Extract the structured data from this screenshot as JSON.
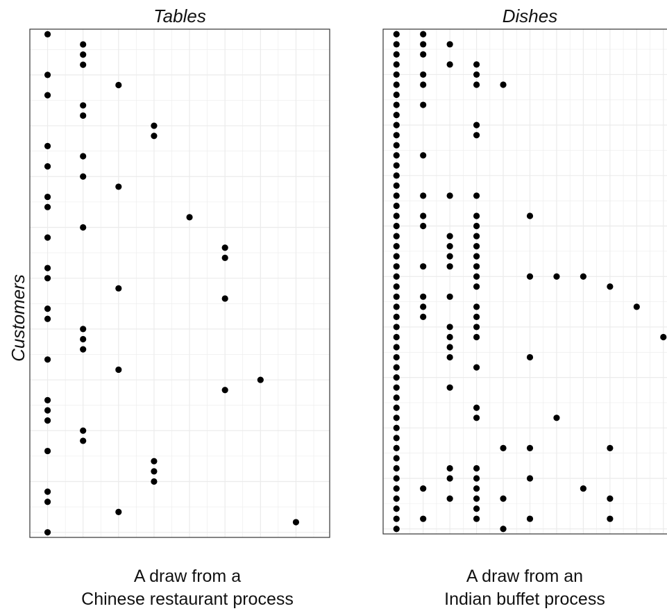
{
  "y_axis_title": "Customers",
  "chart_data": [
    {
      "type": "scatter",
      "title": "Tables",
      "xlabel": "",
      "ylabel": "Customers",
      "caption": [
        "A draw from a",
        "Chinese restaurant process"
      ],
      "xlim": [
        0.5,
        8.95
      ],
      "ylim": [
        0.5,
        50.5
      ],
      "grid": true,
      "y_reversed": true,
      "x": [
        1,
        2,
        2,
        2,
        1,
        3,
        1,
        2,
        2,
        4,
        4,
        1,
        2,
        1,
        2,
        3,
        1,
        1,
        5,
        2,
        1,
        6,
        6,
        1,
        1,
        3,
        6,
        1,
        1,
        2,
        2,
        2,
        1,
        3,
        7,
        6,
        1,
        1,
        1,
        2,
        2,
        1,
        4,
        4,
        4,
        1,
        1,
        3,
        8,
        1
      ],
      "y": [
        1,
        2,
        3,
        4,
        5,
        6,
        7,
        8,
        9,
        10,
        11,
        12,
        13,
        14,
        15,
        16,
        17,
        18,
        19,
        20,
        21,
        22,
        23,
        24,
        25,
        26,
        27,
        28,
        29,
        30,
        31,
        32,
        33,
        34,
        35,
        36,
        37,
        38,
        39,
        40,
        41,
        42,
        43,
        44,
        45,
        46,
        47,
        48,
        49,
        50
      ]
    },
    {
      "type": "scatter",
      "title": "Dishes",
      "xlabel": "",
      "ylabel": "",
      "caption": [
        "A draw from an",
        "Indian buffet process"
      ],
      "xlim": [
        0.5,
        11.5
      ],
      "ylim": [
        0.5,
        50.5
      ],
      "grid": true,
      "y_reversed": true,
      "x": [
        1,
        2,
        1,
        2,
        3,
        1,
        2,
        1,
        3,
        4,
        1,
        2,
        4,
        1,
        2,
        4,
        5,
        1,
        1,
        2,
        1,
        1,
        4,
        1,
        4,
        1,
        1,
        2,
        1,
        1,
        1,
        1,
        2,
        3,
        4,
        1,
        1,
        2,
        4,
        6,
        1,
        2,
        4,
        1,
        3,
        4,
        1,
        3,
        4,
        1,
        3,
        4,
        1,
        2,
        3,
        4,
        1,
        4,
        6,
        7,
        8,
        1,
        4,
        9,
        1,
        2,
        3,
        1,
        2,
        4,
        10,
        1,
        2,
        4,
        1,
        3,
        4,
        1,
        3,
        4,
        11,
        1,
        3,
        1,
        3,
        6,
        1,
        4,
        1,
        1,
        3,
        1,
        1,
        4,
        1,
        4,
        7,
        1,
        1,
        1,
        5,
        6,
        9,
        1,
        1,
        3,
        4,
        1,
        3,
        4,
        6,
        1,
        2,
        4,
        8,
        1,
        3,
        4,
        5,
        9,
        1,
        4,
        1,
        2,
        4,
        6,
        9,
        1,
        5
      ],
      "y": [
        1,
        1,
        2,
        2,
        2,
        3,
        3,
        4,
        4,
        4,
        5,
        5,
        5,
        6,
        6,
        6,
        6,
        7,
        8,
        8,
        9,
        10,
        10,
        11,
        11,
        12,
        13,
        13,
        14,
        15,
        16,
        17,
        17,
        17,
        17,
        18,
        19,
        19,
        19,
        19,
        20,
        20,
        20,
        21,
        21,
        21,
        22,
        22,
        22,
        23,
        23,
        23,
        24,
        24,
        24,
        24,
        25,
        25,
        25,
        25,
        25,
        26,
        26,
        26,
        27,
        27,
        27,
        28,
        28,
        28,
        28,
        29,
        29,
        29,
        30,
        30,
        30,
        31,
        31,
        31,
        31,
        32,
        32,
        33,
        33,
        33,
        34,
        34,
        35,
        36,
        36,
        37,
        38,
        38,
        39,
        39,
        39,
        40,
        41,
        42,
        42,
        42,
        42,
        43,
        44,
        44,
        44,
        45,
        45,
        45,
        45,
        46,
        46,
        46,
        46,
        47,
        47,
        47,
        47,
        47,
        48,
        48,
        49,
        49,
        49,
        49,
        49,
        50,
        50
      ]
    }
  ]
}
